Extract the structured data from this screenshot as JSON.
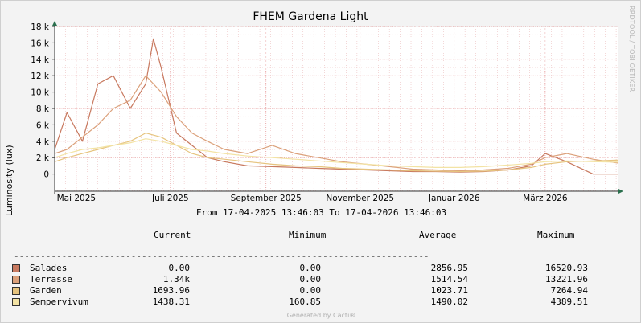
{
  "chart_data": {
    "type": "line",
    "title": "FHEM Gardena Light",
    "ylabel": "Luminosity (lux)",
    "xlabel": "",
    "ylim": [
      -2000,
      18000
    ],
    "yticks": [
      {
        "value": 0,
        "label": "0"
      },
      {
        "value": 2000,
        "label": "2 k"
      },
      {
        "value": 4000,
        "label": "4 k"
      },
      {
        "value": 6000,
        "label": "6 k"
      },
      {
        "value": 8000,
        "label": "8 k"
      },
      {
        "value": 10000,
        "label": "10 k"
      },
      {
        "value": 12000,
        "label": "12 k"
      },
      {
        "value": 14000,
        "label": "14 k"
      },
      {
        "value": 16000,
        "label": "16 k"
      },
      {
        "value": 18000,
        "label": "18 k"
      }
    ],
    "x_range": [
      "2025-04-17",
      "2026-04-17"
    ],
    "xticks": [
      {
        "date": "2025-05-01",
        "label": "Mai 2025"
      },
      {
        "date": "2025-07-01",
        "label": "Juli 2025"
      },
      {
        "date": "2025-09-01",
        "label": "September 2025"
      },
      {
        "date": "2025-11-01",
        "label": "November 2025"
      },
      {
        "date": "2026-01-01",
        "label": "Januar 2026"
      },
      {
        "date": "2026-03-01",
        "label": "März 2026"
      }
    ],
    "grid": true,
    "series": [
      {
        "name": "Salades",
        "color": "#c8795f",
        "x": [
          "2025-04-17",
          "2025-04-25",
          "2025-05-05",
          "2025-05-15",
          "2025-05-25",
          "2025-06-05",
          "2025-06-15",
          "2025-06-20",
          "2025-06-25",
          "2025-07-05",
          "2025-07-15",
          "2025-07-25",
          "2025-08-05",
          "2025-08-20",
          "2025-09-05",
          "2025-09-20",
          "2025-10-05",
          "2025-10-20",
          "2025-11-05",
          "2025-11-20",
          "2025-12-05",
          "2025-12-20",
          "2026-01-05",
          "2026-01-20",
          "2026-02-05",
          "2026-02-20",
          "2026-03-01",
          "2026-03-15",
          "2026-04-01",
          "2026-04-17"
        ],
        "y": [
          3000,
          7500,
          4000,
          11000,
          12000,
          8000,
          11000,
          16500,
          13000,
          5000,
          3500,
          2000,
          1500,
          1000,
          900,
          800,
          700,
          600,
          500,
          400,
          300,
          300,
          250,
          300,
          500,
          1000,
          2500,
          1500,
          0,
          0
        ]
      },
      {
        "name": "Terrasse",
        "color": "#dba07a",
        "x": [
          "2025-04-17",
          "2025-04-25",
          "2025-05-05",
          "2025-05-15",
          "2025-05-25",
          "2025-06-05",
          "2025-06-15",
          "2025-06-25",
          "2025-07-05",
          "2025-07-15",
          "2025-07-25",
          "2025-08-05",
          "2025-08-20",
          "2025-09-05",
          "2025-09-20",
          "2025-10-05",
          "2025-10-20",
          "2025-11-05",
          "2025-11-20",
          "2025-12-05",
          "2025-12-20",
          "2026-01-05",
          "2026-01-20",
          "2026-02-05",
          "2026-02-20",
          "2026-03-01",
          "2026-03-15",
          "2026-04-01",
          "2026-04-17"
        ],
        "y": [
          2500,
          3000,
          4500,
          6000,
          8000,
          9000,
          12000,
          10000,
          7000,
          5000,
          4000,
          3000,
          2500,
          3500,
          2500,
          2000,
          1500,
          1200,
          900,
          600,
          500,
          400,
          500,
          700,
          1200,
          2000,
          2500,
          1800,
          1340
        ]
      },
      {
        "name": "Garden",
        "color": "#e6c47f",
        "x": [
          "2025-04-17",
          "2025-04-25",
          "2025-05-05",
          "2025-05-15",
          "2025-05-25",
          "2025-06-05",
          "2025-06-15",
          "2025-06-25",
          "2025-07-05",
          "2025-07-15",
          "2025-07-25",
          "2025-08-05",
          "2025-08-20",
          "2025-09-05",
          "2025-09-20",
          "2025-10-05",
          "2025-10-20",
          "2025-11-05",
          "2025-11-20",
          "2025-12-05",
          "2025-12-20",
          "2026-01-05",
          "2026-01-20",
          "2026-02-05",
          "2026-02-20",
          "2026-03-01",
          "2026-03-15",
          "2026-04-01",
          "2026-04-17"
        ],
        "y": [
          1500,
          2000,
          2500,
          3000,
          3500,
          4000,
          5000,
          4500,
          3500,
          2500,
          2000,
          1800,
          1500,
          1200,
          1000,
          900,
          700,
          600,
          500,
          400,
          350,
          300,
          350,
          500,
          800,
          1200,
          1500,
          1600,
          1694
        ]
      },
      {
        "name": "Sempervivum",
        "color": "#f3e3a4",
        "x": [
          "2025-04-17",
          "2025-04-25",
          "2025-05-05",
          "2025-05-15",
          "2025-05-25",
          "2025-06-05",
          "2025-06-15",
          "2025-06-25",
          "2025-07-05",
          "2025-07-15",
          "2025-07-25",
          "2025-08-05",
          "2025-08-20",
          "2025-09-05",
          "2025-09-20",
          "2025-10-05",
          "2025-10-20",
          "2025-11-05",
          "2025-11-20",
          "2025-12-05",
          "2025-12-20",
          "2026-01-05",
          "2026-01-20",
          "2026-02-05",
          "2026-02-20",
          "2026-03-01",
          "2026-03-15",
          "2026-04-01",
          "2026-04-17"
        ],
        "y": [
          2000,
          2500,
          3000,
          3200,
          3500,
          3800,
          4300,
          4000,
          3500,
          3000,
          2800,
          2500,
          2200,
          2000,
          1800,
          1600,
          1400,
          1200,
          1000,
          900,
          800,
          800,
          900,
          1100,
          1300,
          1500,
          1600,
          1500,
          1438
        ]
      }
    ]
  },
  "header": {
    "title": "FHEM Gardena Light",
    "watermark": "RRDTOOL / TOBI OETIKER"
  },
  "range_text": "From 17-04-2025 13:46:03 To 17-04-2026 13:46:03",
  "legend": {
    "columns": [
      "Current",
      "Minimum",
      "Average",
      "Maximum"
    ],
    "separator": "------------------------------------------------------------------------------",
    "rows": [
      {
        "name": "Salades",
        "color": "#c8795f",
        "current": "0.00",
        "minimum": "0.00",
        "average": "2856.95",
        "maximum": "16520.93"
      },
      {
        "name": "Terrasse",
        "color": "#dba07a",
        "current": "1.34k",
        "minimum": "0.00",
        "average": "1514.54",
        "maximum": "13221.96"
      },
      {
        "name": "Garden",
        "color": "#e6c47f",
        "current": "1693.96",
        "minimum": "0.00",
        "average": "1023.71",
        "maximum": "7264.94"
      },
      {
        "name": "Sempervivum",
        "color": "#f3e3a4",
        "current": "1438.31",
        "minimum": "160.85",
        "average": "1490.02",
        "maximum": "4389.51"
      }
    ]
  },
  "footer": "Generated by Cacti®"
}
